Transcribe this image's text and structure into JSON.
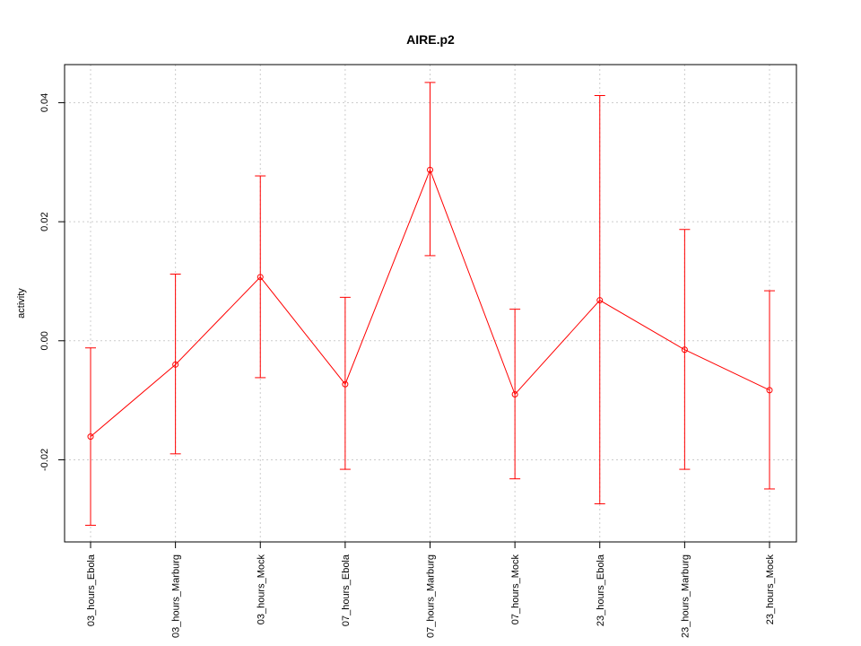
{
  "chart_data": {
    "type": "line",
    "title": "AIRE.p2",
    "xlabel": "",
    "ylabel": "activity",
    "categories": [
      "03_hours_Ebola",
      "03_hours_Marburg",
      "03_hours_Mock",
      "07_hours_Ebola",
      "07_hours_Marburg",
      "07_hours_Mock",
      "23_hours_Ebola",
      "23_hours_Marburg",
      "23_hours_Mock"
    ],
    "series": [
      {
        "values": [
          -0.0161,
          -0.004,
          0.0107,
          -0.0073,
          0.0287,
          -0.009,
          0.0068,
          -0.0015,
          -0.0083
        ],
        "upper": [
          -0.0012,
          0.0112,
          0.0277,
          0.0073,
          0.0434,
          0.0053,
          0.0412,
          0.0187,
          0.0084
        ],
        "lower": [
          -0.031,
          -0.019,
          -0.0062,
          -0.0216,
          0.0143,
          -0.0232,
          -0.0274,
          -0.0216,
          -0.0249
        ],
        "color": "#ff0000"
      }
    ],
    "yticks": [
      -0.02,
      0.0,
      0.02,
      0.04
    ],
    "ytick_labels": [
      "-0.02",
      "0.00",
      "0.02",
      "0.04"
    ],
    "ylim": [
      -0.0338,
      0.0464
    ],
    "grid": true,
    "grid_color": "#cccccc",
    "error_bars": true
  }
}
